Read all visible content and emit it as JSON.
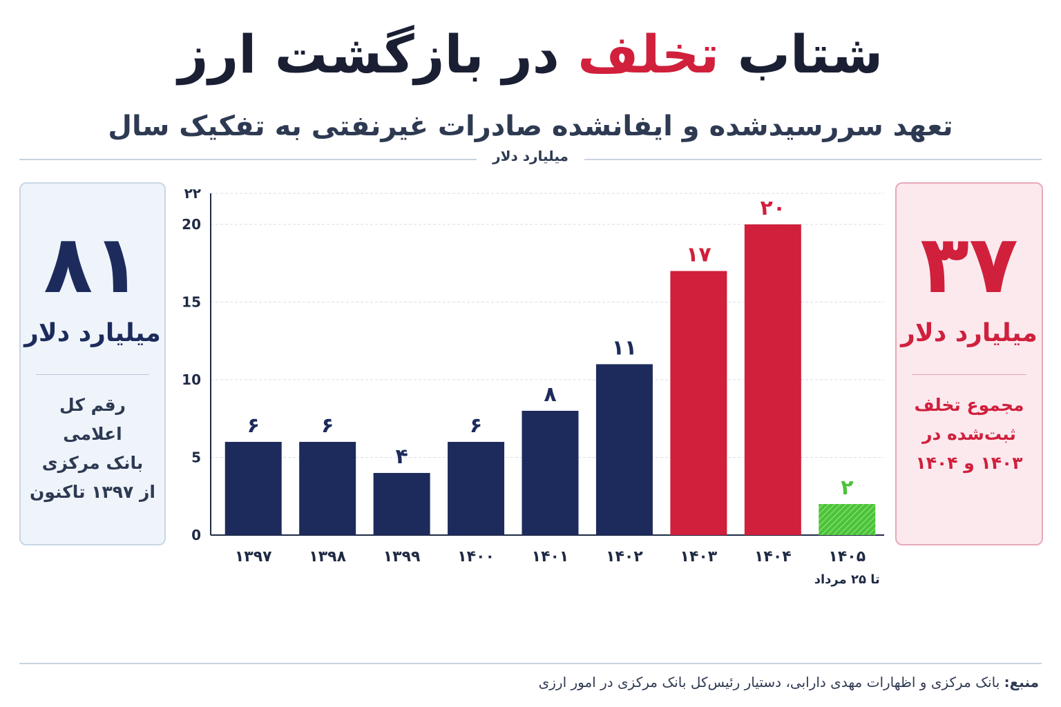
{
  "title": {
    "before": "شتاب",
    "highlight": "تخلف",
    "after": "در بازگشت ارز"
  },
  "subtitle": "تعهد سررسیدشده و ایفانشده صادرات غیرنفتی به تفکیک سال",
  "unit_label": "میلیارد دلار",
  "left_card": {
    "number": "۸۱",
    "unit": "میلیارد دلار",
    "description": "رقم کل اعلامی\nبانک مرکزی\nاز ۱۳۹۷ تاکنون"
  },
  "right_card": {
    "number": "۳۷",
    "unit": "میلیارد دلار",
    "description": "مجموع تخلف\nثبت‌شده در\n۱۴۰۳ و ۱۴۰۴"
  },
  "source": {
    "key": "منبع:",
    "text": "بانک مرکزی و اظهارات مهدی دارابی، دستیار رئیس‌کل بانک مرکزی در امور ارزی"
  },
  "colors": {
    "navy": "#1d2b5c",
    "red": "#d0203c",
    "green": "#4cc23a",
    "axis": "#1f2a44",
    "grid": "#d6dde8"
  },
  "chart_data": {
    "type": "bar",
    "categories": [
      "۱۳۹۷",
      "۱۳۹۸",
      "۱۳۹۹",
      "۱۴۰۰",
      "۱۴۰۱",
      "۱۴۰۲",
      "۱۴۰۳",
      "۱۴۰۴",
      "۱۴۰۵"
    ],
    "category_notes": [
      "",
      "",
      "",
      "",
      "",
      "",
      "",
      "",
      "تا ۲۵ مرداد"
    ],
    "values": [
      6,
      6,
      4,
      6,
      8,
      11,
      17,
      20,
      2
    ],
    "value_labels": [
      "۶",
      "۶",
      "۴",
      "۶",
      "۸",
      "۱۱",
      "۱۷",
      "۲۰",
      "۲"
    ],
    "bar_colors": [
      "navy",
      "navy",
      "navy",
      "navy",
      "navy",
      "navy",
      "red",
      "red",
      "green"
    ],
    "ylim": [
      0,
      22
    ],
    "yticks": [
      0,
      5,
      10,
      15,
      20,
      22
    ],
    "ytick_labels": [
      "0",
      "5",
      "10",
      "15",
      "20",
      "۲۲"
    ],
    "grid": true,
    "title": "",
    "xlabel": "",
    "ylabel": ""
  }
}
